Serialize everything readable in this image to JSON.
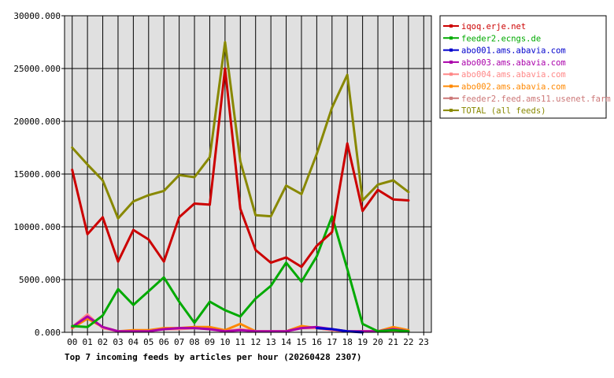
{
  "chart_data": {
    "type": "line",
    "caption": "Top 7 incoming feeds by articles per hour (20260428 2307)",
    "x": [
      "00",
      "01",
      "02",
      "03",
      "04",
      "05",
      "06",
      "07",
      "08",
      "09",
      "10",
      "11",
      "12",
      "13",
      "14",
      "15",
      "16",
      "17",
      "18",
      "19",
      "20",
      "21",
      "22",
      "23"
    ],
    "y_ticks": [
      "0.000",
      "5000.000",
      "10000.000",
      "15000.000",
      "20000.000",
      "25000.000",
      "30000.000"
    ],
    "ylim": [
      0,
      30000
    ],
    "grid": true,
    "legend_position": "right",
    "series": [
      {
        "name": "iqoq.erje.net",
        "color": "#cc0000",
        "values": [
          15400,
          9300,
          10900,
          6700,
          9700,
          8800,
          6700,
          10900,
          12200,
          12100,
          25000,
          11700,
          7800,
          6600,
          7100,
          6200,
          8200,
          9500,
          17900,
          11500,
          13500,
          12600,
          12500,
          null
        ]
      },
      {
        "name": "feeder2.ecngs.de",
        "color": "#00aa00",
        "values": [
          600,
          500,
          1600,
          4100,
          2600,
          3900,
          5200,
          2900,
          900,
          2900,
          2100,
          1500,
          3200,
          4400,
          6600,
          4800,
          7200,
          11000,
          6000,
          800,
          100,
          200,
          100,
          null
        ]
      },
      {
        "name": "abo001.ams.abavia.com",
        "color": "#0000cc",
        "values": [
          null,
          null,
          null,
          null,
          null,
          null,
          null,
          null,
          null,
          null,
          null,
          null,
          null,
          null,
          null,
          null,
          400,
          300,
          100,
          0,
          null,
          null,
          null,
          null
        ]
      },
      {
        "name": "abo003.ams.abavia.com",
        "color": "#aa00aa",
        "values": [
          500,
          1500,
          500,
          100,
          100,
          100,
          300,
          400,
          400,
          300,
          100,
          200,
          100,
          100,
          100,
          400,
          500,
          300,
          100,
          100,
          100,
          300,
          100,
          null
        ]
      },
      {
        "name": "abo004.ams.abavia.com",
        "color": "#ff8888",
        "values": [
          500,
          1700,
          400,
          100,
          100,
          100,
          300,
          300,
          400,
          300,
          100,
          300,
          100,
          100,
          100,
          400,
          400,
          200,
          100,
          100,
          100,
          300,
          100,
          null
        ]
      },
      {
        "name": "abo002.ams.abavia.com",
        "color": "#ff8800",
        "values": [
          400,
          1300,
          500,
          100,
          200,
          200,
          400,
          400,
          500,
          500,
          200,
          800,
          100,
          100,
          100,
          600,
          400,
          200,
          100,
          100,
          100,
          500,
          200,
          null
        ]
      },
      {
        "name": "feeder2.feed.ams11.usenet.farm",
        "color": "#cc7777",
        "values": [
          null,
          null,
          null,
          null,
          null,
          null,
          null,
          null,
          null,
          null,
          null,
          null,
          null,
          null,
          null,
          null,
          null,
          null,
          null,
          100,
          100,
          100,
          100,
          null
        ]
      },
      {
        "name": "TOTAL (all feeds)",
        "color": "#888800",
        "values": [
          17500,
          15900,
          14400,
          10800,
          12400,
          13000,
          13400,
          14900,
          14700,
          16600,
          27500,
          16200,
          11100,
          11000,
          13900,
          13100,
          16900,
          21300,
          24400,
          12500,
          14000,
          14400,
          13300,
          null
        ]
      }
    ]
  }
}
